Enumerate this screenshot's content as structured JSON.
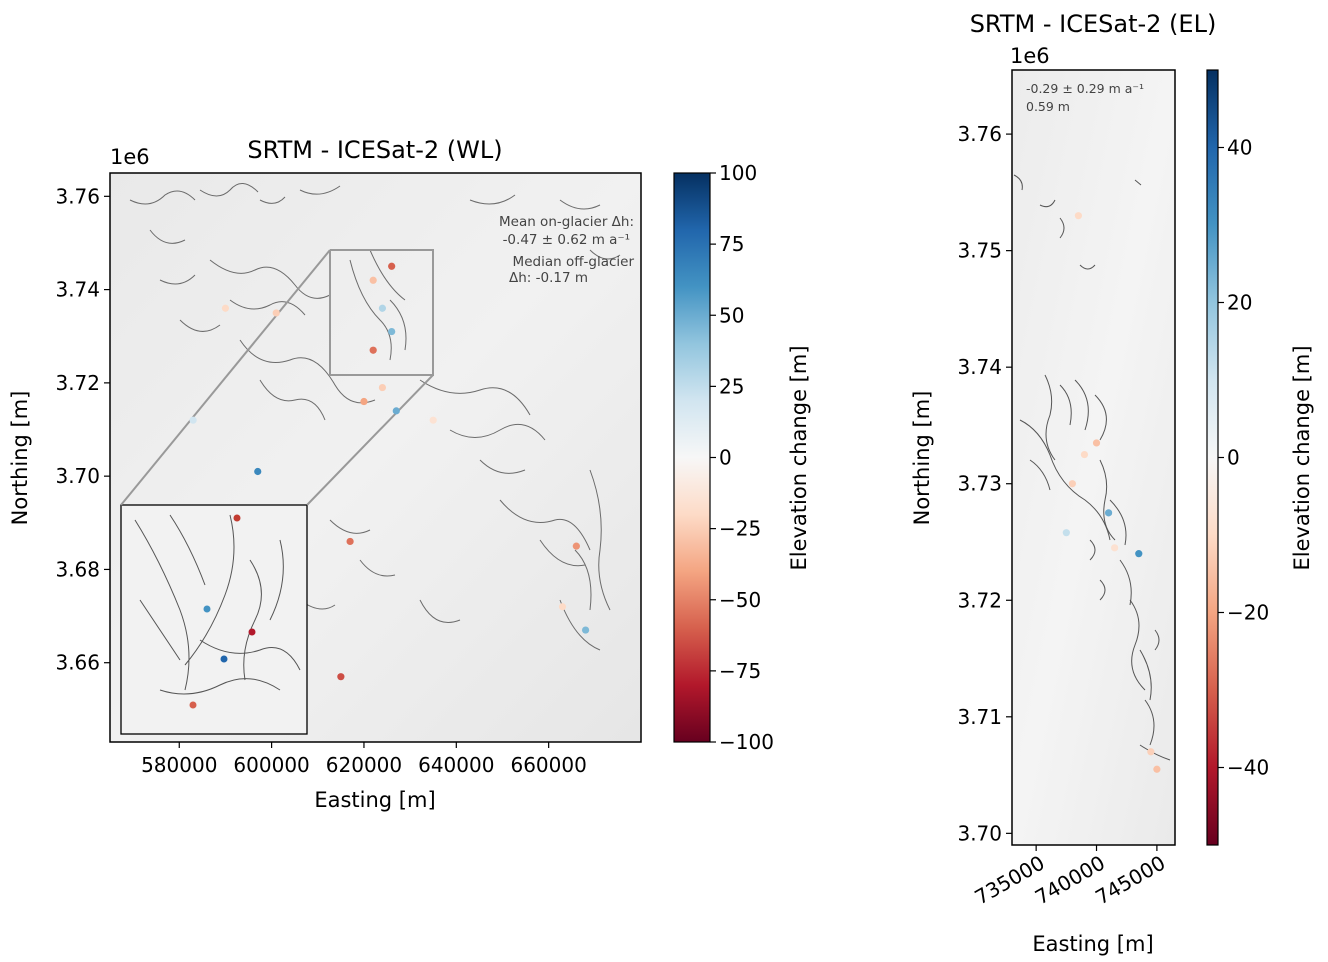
{
  "chart_data": [
    {
      "type": "scatter",
      "title": "SRTM - ICESat-2 (WL)",
      "xlabel": "Easting [m]",
      "ylabel": "Northing [m]",
      "y_offset_label": "1e6",
      "xlim": [
        565000,
        680000
      ],
      "ylim": [
        3643000,
        3765000
      ],
      "x_ticks": [
        580000,
        600000,
        620000,
        640000,
        660000
      ],
      "x_tick_labels": [
        "580000",
        "600000",
        "620000",
        "640000",
        "660000"
      ],
      "y_ticks": [
        3660000,
        3680000,
        3700000,
        3720000,
        3740000,
        3760000
      ],
      "y_tick_labels": [
        "3.66",
        "3.68",
        "3.70",
        "3.72",
        "3.74",
        "3.76"
      ],
      "annotations": [
        "Mean on-glacier Δh:",
        "-0.47 ± 0.62 m a⁻¹",
        "Median off-glacier",
        "Δh: -0.17 m"
      ],
      "colorbar": {
        "label": "Elevation change [m]",
        "range": [
          -100,
          100
        ],
        "ticks": [
          100,
          75,
          50,
          25,
          0,
          -25,
          -50,
          -75,
          -100
        ],
        "tick_labels": [
          "100",
          "75",
          "50",
          "25",
          "0",
          "−25",
          "−50",
          "−75",
          "−100"
        ],
        "colormap": "RdBu"
      },
      "inset_region": {
        "x": [
          611000,
          635000
        ],
        "y": [
          3717000,
          3747000
        ]
      },
      "points": [
        {
          "x": 626000,
          "y": 3745000,
          "v": -60
        },
        {
          "x": 622000,
          "y": 3742000,
          "v": -30
        },
        {
          "x": 624000,
          "y": 3736000,
          "v": 30
        },
        {
          "x": 622000,
          "y": 3727000,
          "v": -55
        },
        {
          "x": 626000,
          "y": 3731000,
          "v": 45
        },
        {
          "x": 627000,
          "y": 3714000,
          "v": 50
        },
        {
          "x": 620000,
          "y": 3716000,
          "v": -40
        },
        {
          "x": 624000,
          "y": 3719000,
          "v": -25
        },
        {
          "x": 597000,
          "y": 3701000,
          "v": 65
        },
        {
          "x": 590000,
          "y": 3736000,
          "v": -20
        },
        {
          "x": 601000,
          "y": 3735000,
          "v": -25
        },
        {
          "x": 635000,
          "y": 3712000,
          "v": -15
        },
        {
          "x": 615000,
          "y": 3657000,
          "v": -65
        },
        {
          "x": 666000,
          "y": 3685000,
          "v": -45
        },
        {
          "x": 668000,
          "y": 3667000,
          "v": 45
        },
        {
          "x": 663000,
          "y": 3672000,
          "v": -20
        },
        {
          "x": 617000,
          "y": 3686000,
          "v": -55
        },
        {
          "x": 583000,
          "y": 3712000,
          "v": 20
        }
      ]
    },
    {
      "type": "scatter",
      "title": "SRTM - ICESat-2 (EL)",
      "xlabel": "Easting [m]",
      "ylabel": "Northing [m]",
      "y_offset_label": "1e6",
      "xlim": [
        733000,
        746500
      ],
      "ylim": [
        3699000,
        3765500
      ],
      "x_ticks": [
        735000,
        740000,
        745000
      ],
      "x_tick_labels": [
        "735000",
        "740000",
        "745000"
      ],
      "y_ticks": [
        3700000,
        3710000,
        3720000,
        3730000,
        3740000,
        3750000,
        3760000
      ],
      "y_tick_labels": [
        "3.70",
        "3.71",
        "3.72",
        "3.73",
        "3.74",
        "3.75",
        "3.76"
      ],
      "annotations": [
        "-0.29 ± 0.29 m a⁻¹",
        "0.59 m"
      ],
      "colorbar": {
        "label": "Elevation change [m]",
        "range": [
          -50,
          50
        ],
        "ticks": [
          40,
          20,
          0,
          -20,
          -40
        ],
        "tick_labels": [
          "40",
          "20",
          "0",
          "−20",
          "−40"
        ],
        "colormap": "RdBu"
      },
      "points": [
        {
          "x": 743500,
          "y": 3724000,
          "v": 30
        },
        {
          "x": 741000,
          "y": 3727500,
          "v": 25
        },
        {
          "x": 738000,
          "y": 3730000,
          "v": -12
        },
        {
          "x": 739000,
          "y": 3732500,
          "v": -10
        },
        {
          "x": 740000,
          "y": 3733500,
          "v": -15
        },
        {
          "x": 741500,
          "y": 3724500,
          "v": -8
        },
        {
          "x": 744500,
          "y": 3707000,
          "v": -12
        },
        {
          "x": 745000,
          "y": 3705500,
          "v": -15
        },
        {
          "x": 737500,
          "y": 3725800,
          "v": 12
        },
        {
          "x": 738500,
          "y": 3753000,
          "v": -10
        }
      ]
    }
  ]
}
